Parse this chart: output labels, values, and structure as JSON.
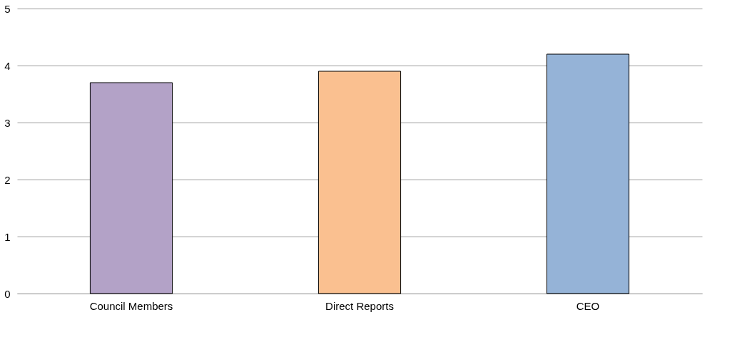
{
  "chart_data": {
    "type": "bar",
    "categories": [
      "Council Members",
      "Direct Reports",
      "CEO"
    ],
    "values": [
      3.7,
      3.9,
      4.2
    ],
    "colors": [
      "#b3a2c7",
      "#fac090",
      "#95b3d7"
    ],
    "ylim": [
      0,
      5
    ],
    "yticks": [
      0,
      1,
      2,
      3,
      4,
      5
    ],
    "grid": "y"
  }
}
